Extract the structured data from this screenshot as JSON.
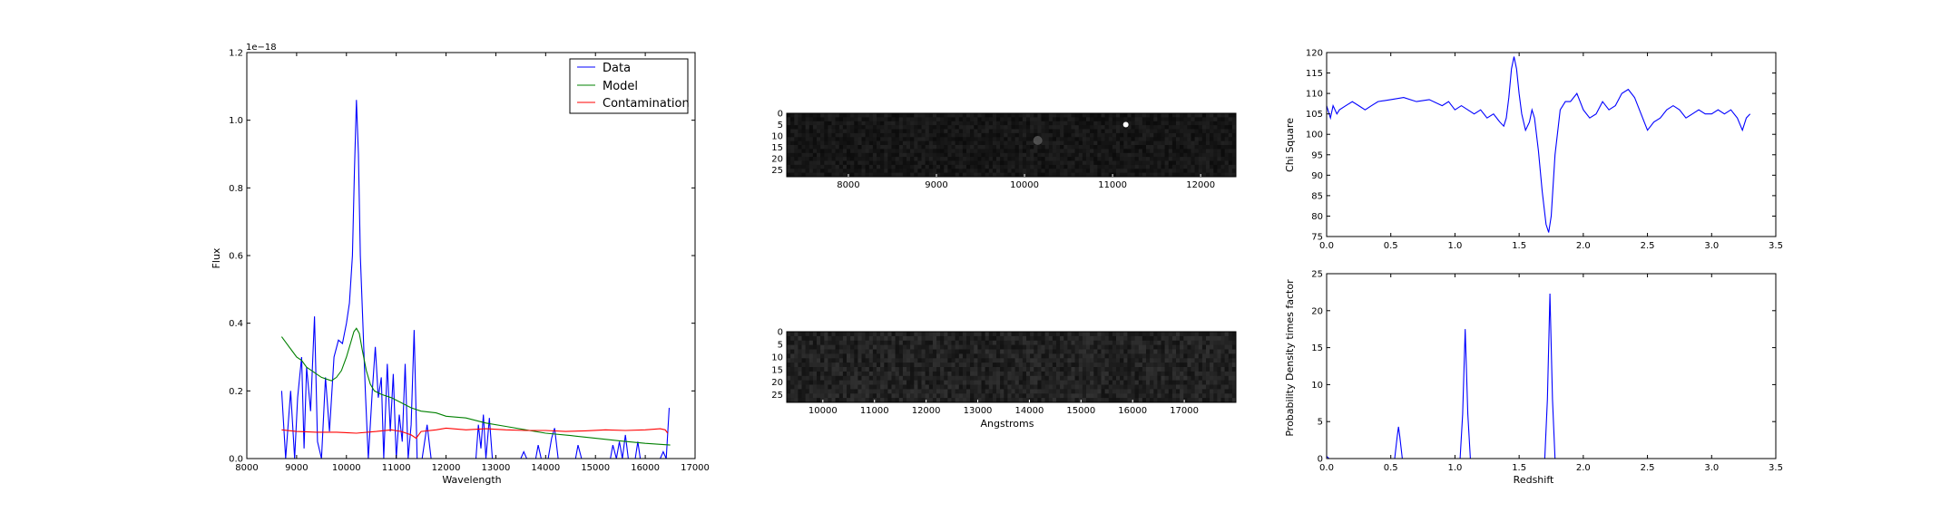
{
  "chart_data": [
    {
      "type": "line",
      "panel": "spectrum",
      "xlabel": "Wavelength",
      "ylabel": "Flux",
      "offset_text": "1e−18",
      "xlim": [
        8000,
        17000
      ],
      "ylim": [
        0,
        1.2
      ],
      "xticks": [
        "8000",
        "9000",
        "10000",
        "11000",
        "12000",
        "13000",
        "14000",
        "15000",
        "16000",
        "17000"
      ],
      "yticks": [
        "0.0",
        "0.2",
        "0.4",
        "0.6",
        "0.8",
        "1.0",
        "1.2"
      ],
      "legend_position": "top-right",
      "series": [
        {
          "name": "Data",
          "color": "#0000ff",
          "points": [
            [
              8700,
              0.2
            ],
            [
              8780,
              0.0
            ],
            [
              8880,
              0.2
            ],
            [
              8960,
              0.0
            ],
            [
              9020,
              0.18
            ],
            [
              9100,
              0.3
            ],
            [
              9150,
              0.03
            ],
            [
              9200,
              0.27
            ],
            [
              9280,
              0.14
            ],
            [
              9360,
              0.42
            ],
            [
              9420,
              0.05
            ],
            [
              9500,
              0.0
            ],
            [
              9580,
              0.24
            ],
            [
              9660,
              0.08
            ],
            [
              9750,
              0.3
            ],
            [
              9840,
              0.35
            ],
            [
              9920,
              0.34
            ],
            [
              10000,
              0.4
            ],
            [
              10060,
              0.46
            ],
            [
              10120,
              0.6
            ],
            [
              10160,
              0.85
            ],
            [
              10200,
              1.06
            ],
            [
              10240,
              0.9
            ],
            [
              10280,
              0.6
            ],
            [
              10330,
              0.4
            ],
            [
              10380,
              0.2
            ],
            [
              10440,
              0.0
            ],
            [
              10520,
              0.2
            ],
            [
              10580,
              0.33
            ],
            [
              10640,
              0.18
            ],
            [
              10700,
              0.24
            ],
            [
              10750,
              0.0
            ],
            [
              10820,
              0.28
            ],
            [
              10880,
              0.08
            ],
            [
              10940,
              0.25
            ],
            [
              11000,
              0.0
            ],
            [
              11060,
              0.13
            ],
            [
              11120,
              0.05
            ],
            [
              11180,
              0.28
            ],
            [
              11240,
              0.0
            ],
            [
              11300,
              0.1
            ],
            [
              11360,
              0.38
            ],
            [
              11420,
              0.0
            ],
            [
              11520,
              0.0
            ],
            [
              11620,
              0.1
            ],
            [
              11700,
              0.0
            ],
            [
              12600,
              0.0
            ],
            [
              12650,
              0.1
            ],
            [
              12700,
              0.03
            ],
            [
              12750,
              0.13
            ],
            [
              12800,
              0.0
            ],
            [
              12870,
              0.12
            ],
            [
              12930,
              0.0
            ],
            [
              13500,
              0.0
            ],
            [
              13560,
              0.02
            ],
            [
              13620,
              0.0
            ],
            [
              13800,
              0.0
            ],
            [
              13850,
              0.04
            ],
            [
              13910,
              0.0
            ],
            [
              14050,
              0.0
            ],
            [
              14120,
              0.06
            ],
            [
              14180,
              0.09
            ],
            [
              14250,
              0.0
            ],
            [
              14600,
              0.0
            ],
            [
              14650,
              0.04
            ],
            [
              14720,
              0.0
            ],
            [
              15300,
              0.0
            ],
            [
              15350,
              0.04
            ],
            [
              15420,
              0.0
            ],
            [
              15480,
              0.05
            ],
            [
              15540,
              0.0
            ],
            [
              15600,
              0.07
            ],
            [
              15660,
              0.0
            ],
            [
              15800,
              0.0
            ],
            [
              15850,
              0.05
            ],
            [
              15900,
              0.0
            ],
            [
              16300,
              0.0
            ],
            [
              16360,
              0.02
            ],
            [
              16420,
              0.0
            ],
            [
              16480,
              0.15
            ]
          ]
        },
        {
          "name": "Model",
          "color": "#008000",
          "points": [
            [
              8700,
              0.36
            ],
            [
              8800,
              0.34
            ],
            [
              8900,
              0.32
            ],
            [
              9000,
              0.3
            ],
            [
              9100,
              0.29
            ],
            [
              9200,
              0.27
            ],
            [
              9300,
              0.26
            ],
            [
              9400,
              0.25
            ],
            [
              9500,
              0.24
            ],
            [
              9600,
              0.235
            ],
            [
              9700,
              0.23
            ],
            [
              9800,
              0.24
            ],
            [
              9900,
              0.26
            ],
            [
              10000,
              0.3
            ],
            [
              10080,
              0.34
            ],
            [
              10150,
              0.375
            ],
            [
              10200,
              0.385
            ],
            [
              10260,
              0.37
            ],
            [
              10320,
              0.32
            ],
            [
              10400,
              0.26
            ],
            [
              10480,
              0.22
            ],
            [
              10560,
              0.2
            ],
            [
              10700,
              0.19
            ],
            [
              10900,
              0.18
            ],
            [
              11100,
              0.165
            ],
            [
              11300,
              0.15
            ],
            [
              11500,
              0.14
            ],
            [
              11800,
              0.135
            ],
            [
              12000,
              0.125
            ],
            [
              12400,
              0.12
            ],
            [
              12800,
              0.105
            ],
            [
              13200,
              0.095
            ],
            [
              13600,
              0.085
            ],
            [
              14000,
              0.075
            ],
            [
              14500,
              0.068
            ],
            [
              15000,
              0.06
            ],
            [
              15500,
              0.052
            ],
            [
              16000,
              0.045
            ],
            [
              16500,
              0.04
            ]
          ]
        },
        {
          "name": "Contamination",
          "color": "#ff0000",
          "points": [
            [
              8700,
              0.085
            ],
            [
              9000,
              0.08
            ],
            [
              9400,
              0.078
            ],
            [
              9800,
              0.078
            ],
            [
              10200,
              0.075
            ],
            [
              10600,
              0.08
            ],
            [
              10900,
              0.085
            ],
            [
              11100,
              0.08
            ],
            [
              11300,
              0.07
            ],
            [
              11400,
              0.06
            ],
            [
              11500,
              0.08
            ],
            [
              11800,
              0.085
            ],
            [
              12000,
              0.09
            ],
            [
              12400,
              0.085
            ],
            [
              12800,
              0.088
            ],
            [
              13200,
              0.085
            ],
            [
              13600,
              0.083
            ],
            [
              14000,
              0.083
            ],
            [
              14400,
              0.08
            ],
            [
              14800,
              0.082
            ],
            [
              15200,
              0.085
            ],
            [
              15600,
              0.083
            ],
            [
              16000,
              0.085
            ],
            [
              16300,
              0.088
            ],
            [
              16400,
              0.085
            ],
            [
              16450,
              0.075
            ]
          ]
        }
      ]
    },
    {
      "type": "heatmap",
      "panel": "image-top",
      "xlim": [
        7300,
        12400
      ],
      "ylim": [
        28,
        0
      ],
      "xticks": [
        "8000",
        "9000",
        "10000",
        "11000",
        "12000"
      ],
      "yticks": [
        "0",
        "5",
        "10",
        "15",
        "20",
        "25"
      ],
      "xlabel": "",
      "features": [
        {
          "x": 11150,
          "y": 5,
          "level": 1.0
        },
        {
          "x": 10150,
          "y": 12,
          "level": 0.35
        }
      ]
    },
    {
      "type": "heatmap",
      "panel": "image-bottom",
      "xlim": [
        9300,
        18000
      ],
      "ylim": [
        28,
        0
      ],
      "xticks": [
        "10000",
        "11000",
        "12000",
        "13000",
        "14000",
        "15000",
        "16000",
        "17000"
      ],
      "yticks": [
        "0",
        "5",
        "10",
        "15",
        "20",
        "25"
      ],
      "xlabel": "Angstroms"
    },
    {
      "type": "line",
      "panel": "chi-square",
      "xlabel": "",
      "ylabel": "Chi Square",
      "xlim": [
        0,
        3.5
      ],
      "ylim": [
        75,
        120
      ],
      "xticks": [
        "0.0",
        "0.5",
        "1.0",
        "1.5",
        "2.0",
        "2.5",
        "3.0",
        "3.5"
      ],
      "yticks": [
        "75",
        "80",
        "85",
        "90",
        "95",
        "100",
        "105",
        "110",
        "115",
        "120"
      ],
      "series": [
        {
          "color": "#0000ff",
          "points": [
            [
              0.0,
              107
            ],
            [
              0.03,
              104
            ],
            [
              0.05,
              107
            ],
            [
              0.08,
              105
            ],
            [
              0.1,
              106
            ],
            [
              0.15,
              107
            ],
            [
              0.2,
              108
            ],
            [
              0.25,
              107
            ],
            [
              0.3,
              106
            ],
            [
              0.35,
              107
            ],
            [
              0.4,
              108
            ],
            [
              0.5,
              108.5
            ],
            [
              0.6,
              109
            ],
            [
              0.7,
              108
            ],
            [
              0.8,
              108.5
            ],
            [
              0.9,
              107
            ],
            [
              0.95,
              108
            ],
            [
              1.0,
              106
            ],
            [
              1.05,
              107
            ],
            [
              1.1,
              106
            ],
            [
              1.15,
              105
            ],
            [
              1.2,
              106
            ],
            [
              1.25,
              104
            ],
            [
              1.3,
              105
            ],
            [
              1.35,
              103
            ],
            [
              1.38,
              102
            ],
            [
              1.4,
              104
            ],
            [
              1.42,
              109
            ],
            [
              1.44,
              116
            ],
            [
              1.46,
              119
            ],
            [
              1.48,
              116
            ],
            [
              1.5,
              110
            ],
            [
              1.52,
              105
            ],
            [
              1.55,
              101
            ],
            [
              1.58,
              103
            ],
            [
              1.6,
              106
            ],
            [
              1.62,
              104
            ],
            [
              1.65,
              96
            ],
            [
              1.68,
              86
            ],
            [
              1.71,
              78
            ],
            [
              1.73,
              76
            ],
            [
              1.75,
              80
            ],
            [
              1.78,
              95
            ],
            [
              1.82,
              106
            ],
            [
              1.86,
              108
            ],
            [
              1.9,
              108
            ],
            [
              1.95,
              110
            ],
            [
              2.0,
              106
            ],
            [
              2.05,
              104
            ],
            [
              2.1,
              105
            ],
            [
              2.15,
              108
            ],
            [
              2.2,
              106
            ],
            [
              2.25,
              107
            ],
            [
              2.3,
              110
            ],
            [
              2.35,
              111
            ],
            [
              2.4,
              109
            ],
            [
              2.45,
              105
            ],
            [
              2.5,
              101
            ],
            [
              2.55,
              103
            ],
            [
              2.6,
              104
            ],
            [
              2.65,
              106
            ],
            [
              2.7,
              107
            ],
            [
              2.75,
              106
            ],
            [
              2.8,
              104
            ],
            [
              2.85,
              105
            ],
            [
              2.9,
              106
            ],
            [
              2.95,
              105
            ],
            [
              3.0,
              105
            ],
            [
              3.05,
              106
            ],
            [
              3.1,
              105
            ],
            [
              3.15,
              106
            ],
            [
              3.2,
              104
            ],
            [
              3.24,
              101
            ],
            [
              3.27,
              104
            ],
            [
              3.3,
              105
            ]
          ]
        }
      ]
    },
    {
      "type": "line",
      "panel": "probability",
      "xlabel": "Redshift",
      "ylabel": "Probability Density times factor",
      "xlim": [
        0,
        3.5
      ],
      "ylim": [
        0,
        25
      ],
      "xticks": [
        "0.0",
        "0.5",
        "1.0",
        "1.5",
        "2.0",
        "2.5",
        "3.0",
        "3.5"
      ],
      "yticks": [
        "0",
        "5",
        "10",
        "15",
        "20",
        "25"
      ],
      "series": [
        {
          "color": "#0000ff",
          "points": [
            [
              0.0,
              0.3
            ],
            [
              0.02,
              0
            ],
            [
              0.53,
              0
            ],
            [
              0.55,
              3.0
            ],
            [
              0.56,
              4.3
            ],
            [
              0.57,
              3.0
            ],
            [
              0.59,
              0
            ],
            [
              1.04,
              0
            ],
            [
              1.06,
              6
            ],
            [
              1.08,
              17.5
            ],
            [
              1.1,
              6
            ],
            [
              1.12,
              0
            ],
            [
              1.7,
              0
            ],
            [
              1.72,
              8
            ],
            [
              1.74,
              22.3
            ],
            [
              1.76,
              8
            ],
            [
              1.78,
              0
            ],
            [
              3.3,
              0
            ]
          ]
        }
      ]
    }
  ]
}
